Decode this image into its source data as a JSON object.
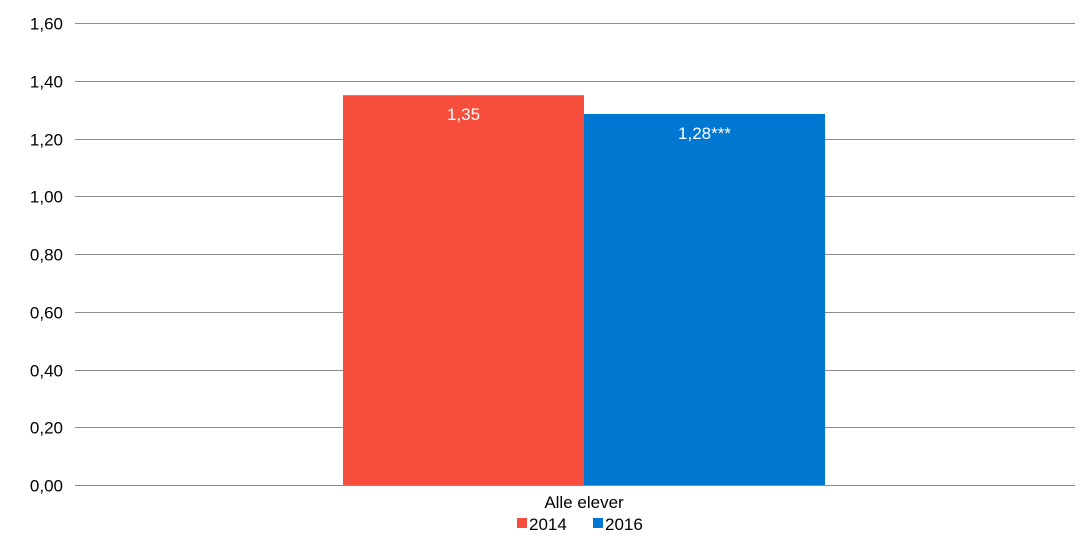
{
  "chart_data": {
    "type": "bar",
    "categories": [
      "Alle elever"
    ],
    "series": [
      {
        "name": "2014",
        "values": [
          1.35
        ],
        "data_labels": [
          "1,35"
        ],
        "color": "#f74d3c"
      },
      {
        "name": "2016",
        "values": [
          1.285
        ],
        "data_labels": [
          "1,28***"
        ],
        "color": "#0077d1"
      }
    ],
    "title": "",
    "xlabel": "",
    "ylabel": "",
    "ylim": [
      0,
      1.6
    ],
    "y_ticks": [
      0,
      0.2,
      0.4,
      0.6,
      0.8,
      1.0,
      1.2,
      1.4,
      1.6
    ],
    "y_tick_labels": [
      "0,00",
      "0,20",
      "0,40",
      "0,60",
      "0,80",
      "1,00",
      "1,20",
      "1,40",
      "1,60"
    ],
    "grid": true,
    "legend_position": "bottom"
  }
}
